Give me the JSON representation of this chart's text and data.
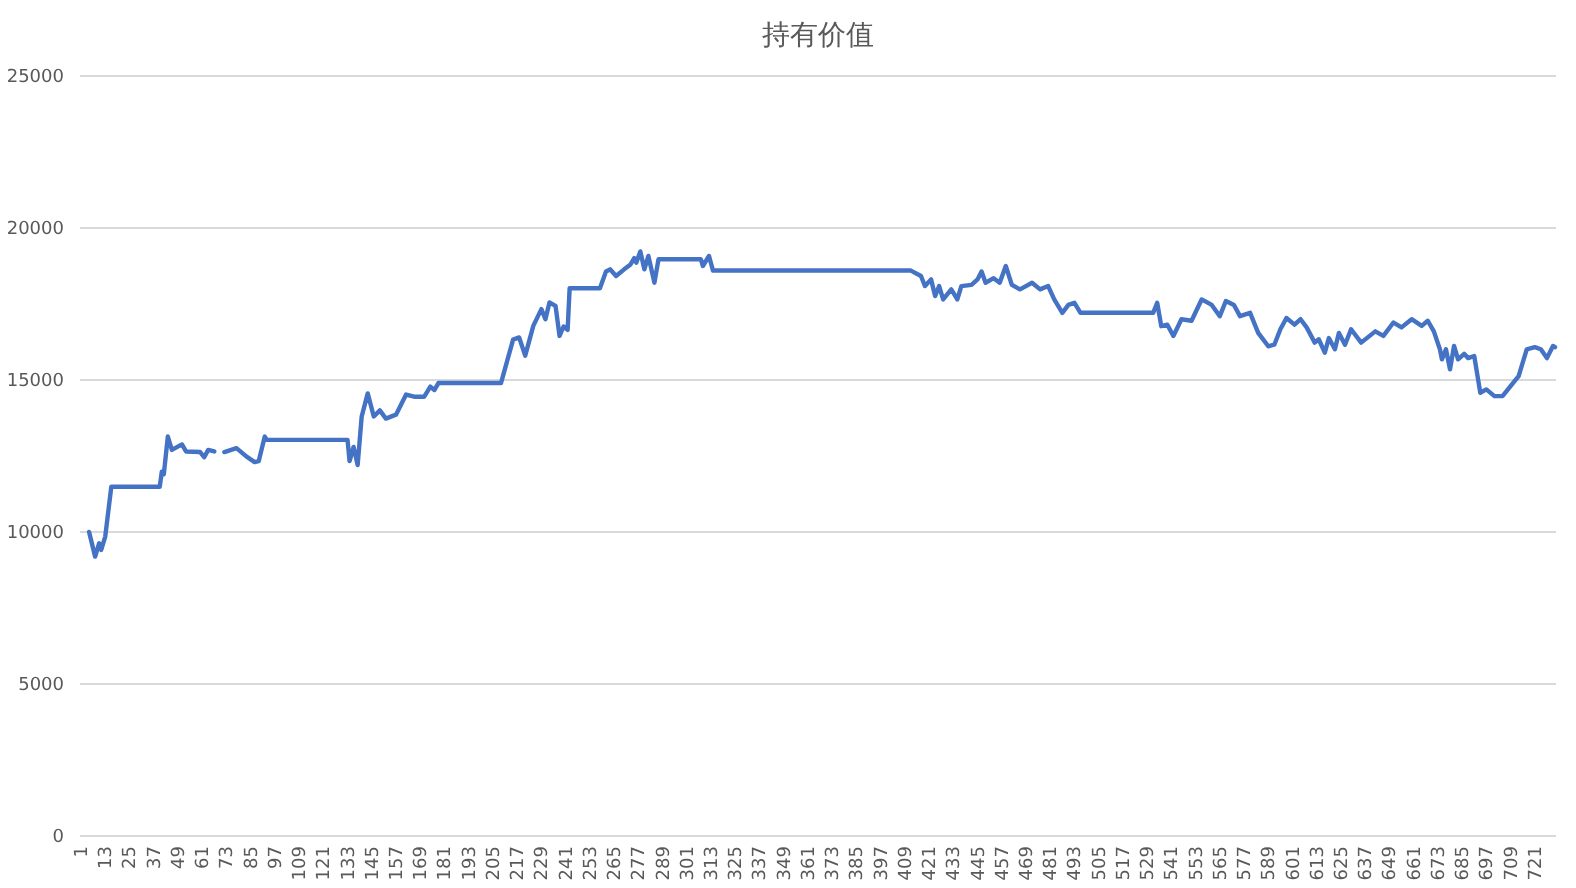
{
  "chart_data": {
    "type": "line",
    "title": "持有价值",
    "color": "#4472c4",
    "grid": "y",
    "xlim": [
      0.5,
      731.5
    ],
    "xticks": [
      1,
      13,
      25,
      37,
      49,
      61,
      73,
      85,
      97,
      109,
      121,
      133,
      145,
      157,
      169,
      181,
      193,
      205,
      217,
      229,
      241,
      253,
      265,
      277,
      289,
      301,
      313,
      325,
      337,
      349,
      361,
      373,
      385,
      397,
      409,
      421,
      433,
      445,
      457,
      469,
      481,
      493,
      505,
      517,
      529,
      541,
      553,
      565,
      577,
      589,
      601,
      613,
      625,
      637,
      649,
      661,
      673,
      685,
      697,
      709,
      721
    ],
    "ylim": [
      0,
      25000
    ],
    "yticks": [
      0,
      5000,
      10000,
      15000,
      20000,
      25000
    ],
    "x": [
      5,
      8,
      10,
      11,
      13,
      16,
      40,
      41,
      42,
      44,
      46,
      51,
      53,
      60,
      62,
      64,
      67,
      69,
      72,
      78,
      83,
      87,
      89,
      92,
      93,
      133,
      134,
      136,
      138,
      140,
      143,
      146,
      149,
      152,
      157,
      162,
      166,
      171,
      174,
      176,
      178,
      209,
      215,
      218,
      221,
      225,
      229,
      231,
      233,
      236,
      238,
      240,
      242,
      243,
      258,
      261,
      263,
      266,
      270,
      273,
      275,
      276,
      278,
      280,
      282,
      285,
      287,
      308,
      309,
      312,
      314,
      412,
      417,
      419,
      422,
      424,
      426,
      428,
      432,
      435,
      437,
      442,
      445,
      447,
      449,
      453,
      456,
      459,
      462,
      466,
      469,
      472,
      476,
      480,
      483,
      487,
      490,
      493,
      496,
      532,
      534,
      536,
      539,
      542,
      546,
      551,
      556,
      561,
      565,
      568,
      572,
      575,
      580,
      584,
      589,
      592,
      595,
      598,
      602,
      605,
      608,
      612,
      614,
      617,
      619,
      622,
      624,
      627,
      630,
      635,
      642,
      646,
      651,
      655,
      660,
      665,
      668,
      671,
      674,
      675,
      677,
      679,
      681,
      683,
      686,
      688,
      691,
      694,
      697,
      701,
      705,
      709,
      713,
      717,
      721,
      724,
      727,
      730,
      731
    ],
    "values": [
      10000,
      9190,
      9630,
      9410,
      9850,
      11490,
      11490,
      11980,
      11900,
      13140,
      12700,
      12880,
      12650,
      12630,
      12460,
      12700,
      12650,
      null,
      12630,
      12760,
      12480,
      12300,
      12330,
      13140,
      13030,
      13030,
      12330,
      12800,
      12200,
      13800,
      14560,
      13800,
      14000,
      13730,
      13860,
      14520,
      14450,
      14450,
      14780,
      14670,
      14900,
      14900,
      16330,
      16400,
      15800,
      16780,
      17330,
      17000,
      17550,
      17440,
      16450,
      16760,
      16650,
      18020,
      18020,
      18570,
      18640,
      18420,
      18640,
      18790,
      19010,
      18860,
      19230,
      18640,
      19080,
      18200,
      18970,
      18970,
      18750,
      19080,
      18600,
      18600,
      18420,
      18090,
      18310,
      17760,
      18090,
      17650,
      17980,
      17650,
      18090,
      18130,
      18310,
      18570,
      18200,
      18350,
      18200,
      18750,
      18130,
      17980,
      18090,
      18200,
      17980,
      18090,
      17650,
      17210,
      17470,
      17540,
      17210,
      17210,
      17540,
      16770,
      16820,
      16450,
      17000,
      16950,
      17650,
      17470,
      17100,
      17600,
      17470,
      17100,
      17210,
      16550,
      16110,
      16160,
      16670,
      17040,
      16820,
      17000,
      16730,
      16230,
      16340,
      15900,
      16380,
      16010,
      16550,
      16160,
      16670,
      16230,
      16600,
      16450,
      16890,
      16730,
      17000,
      16780,
      16950,
      16600,
      16010,
      15680,
      16010,
      15350,
      16120,
      15680,
      15860,
      15720,
      15790,
      14580,
      14690,
      14470,
      14470,
      14800,
      15130,
      16010,
      16080,
      16010,
      15720,
      16120,
      16080
    ]
  }
}
